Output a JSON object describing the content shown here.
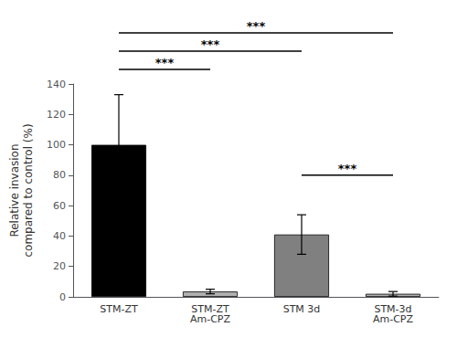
{
  "chart_data": {
    "type": "bar",
    "categories": [
      "STM-ZT",
      "STM-ZT\nAm-CPZ",
      "STM 3d",
      "STM-3d\nAm-CPZ"
    ],
    "values": [
      100,
      3.5,
      41,
      2.0
    ],
    "errors": [
      33,
      1.5,
      13,
      1.5
    ],
    "colors": [
      "#000000",
      "#b0b0b0",
      "#808080",
      "#b0b0b0"
    ],
    "ylabel": "Relative invasion\ncompared to control (%)",
    "ylim": [
      0,
      140
    ],
    "yticks": [
      0,
      20,
      40,
      60,
      80,
      100,
      120,
      140
    ],
    "grid": false,
    "annotations": [
      {
        "text": "***",
        "from": "STM-ZT",
        "to": "STM-ZT\nAm-CPZ"
      },
      {
        "text": "***",
        "from": "STM-ZT",
        "to": "STM 3d"
      },
      {
        "text": "***",
        "from": "STM-ZT",
        "to": "STM-3d\nAm-CPZ"
      },
      {
        "text": "***",
        "from": "STM 3d",
        "to": "STM-3d\nAm-CPZ",
        "y": 80
      }
    ]
  }
}
